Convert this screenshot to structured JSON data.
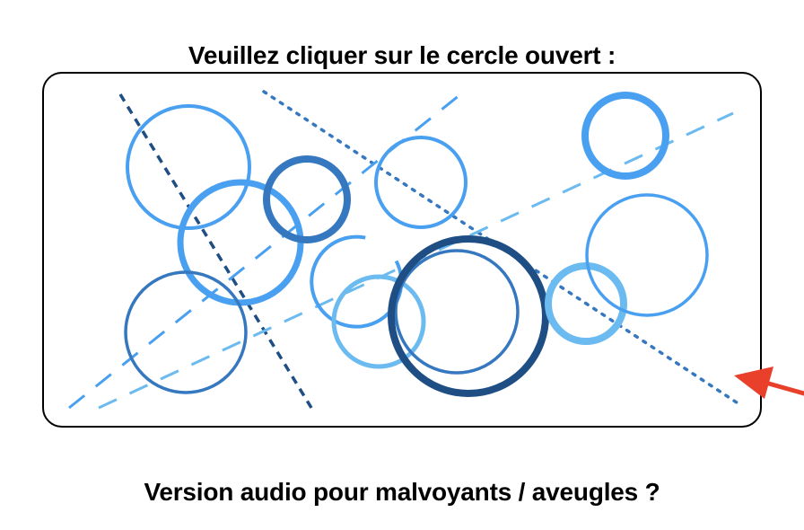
{
  "captcha": {
    "instruction": "Veuillez cliquer sur le cercle ouvert :",
    "audio_label": "Version audio pour malvoyants / aveugles ?"
  },
  "colors": {
    "dark_blue": "#1f4e85",
    "mid_blue": "#3578c0",
    "bright_blue": "#4aa0f0",
    "light_blue": "#6bbaf0",
    "arrow_red": "#e8402a"
  },
  "icons": {
    "pointer": "red-arrow-icon"
  }
}
